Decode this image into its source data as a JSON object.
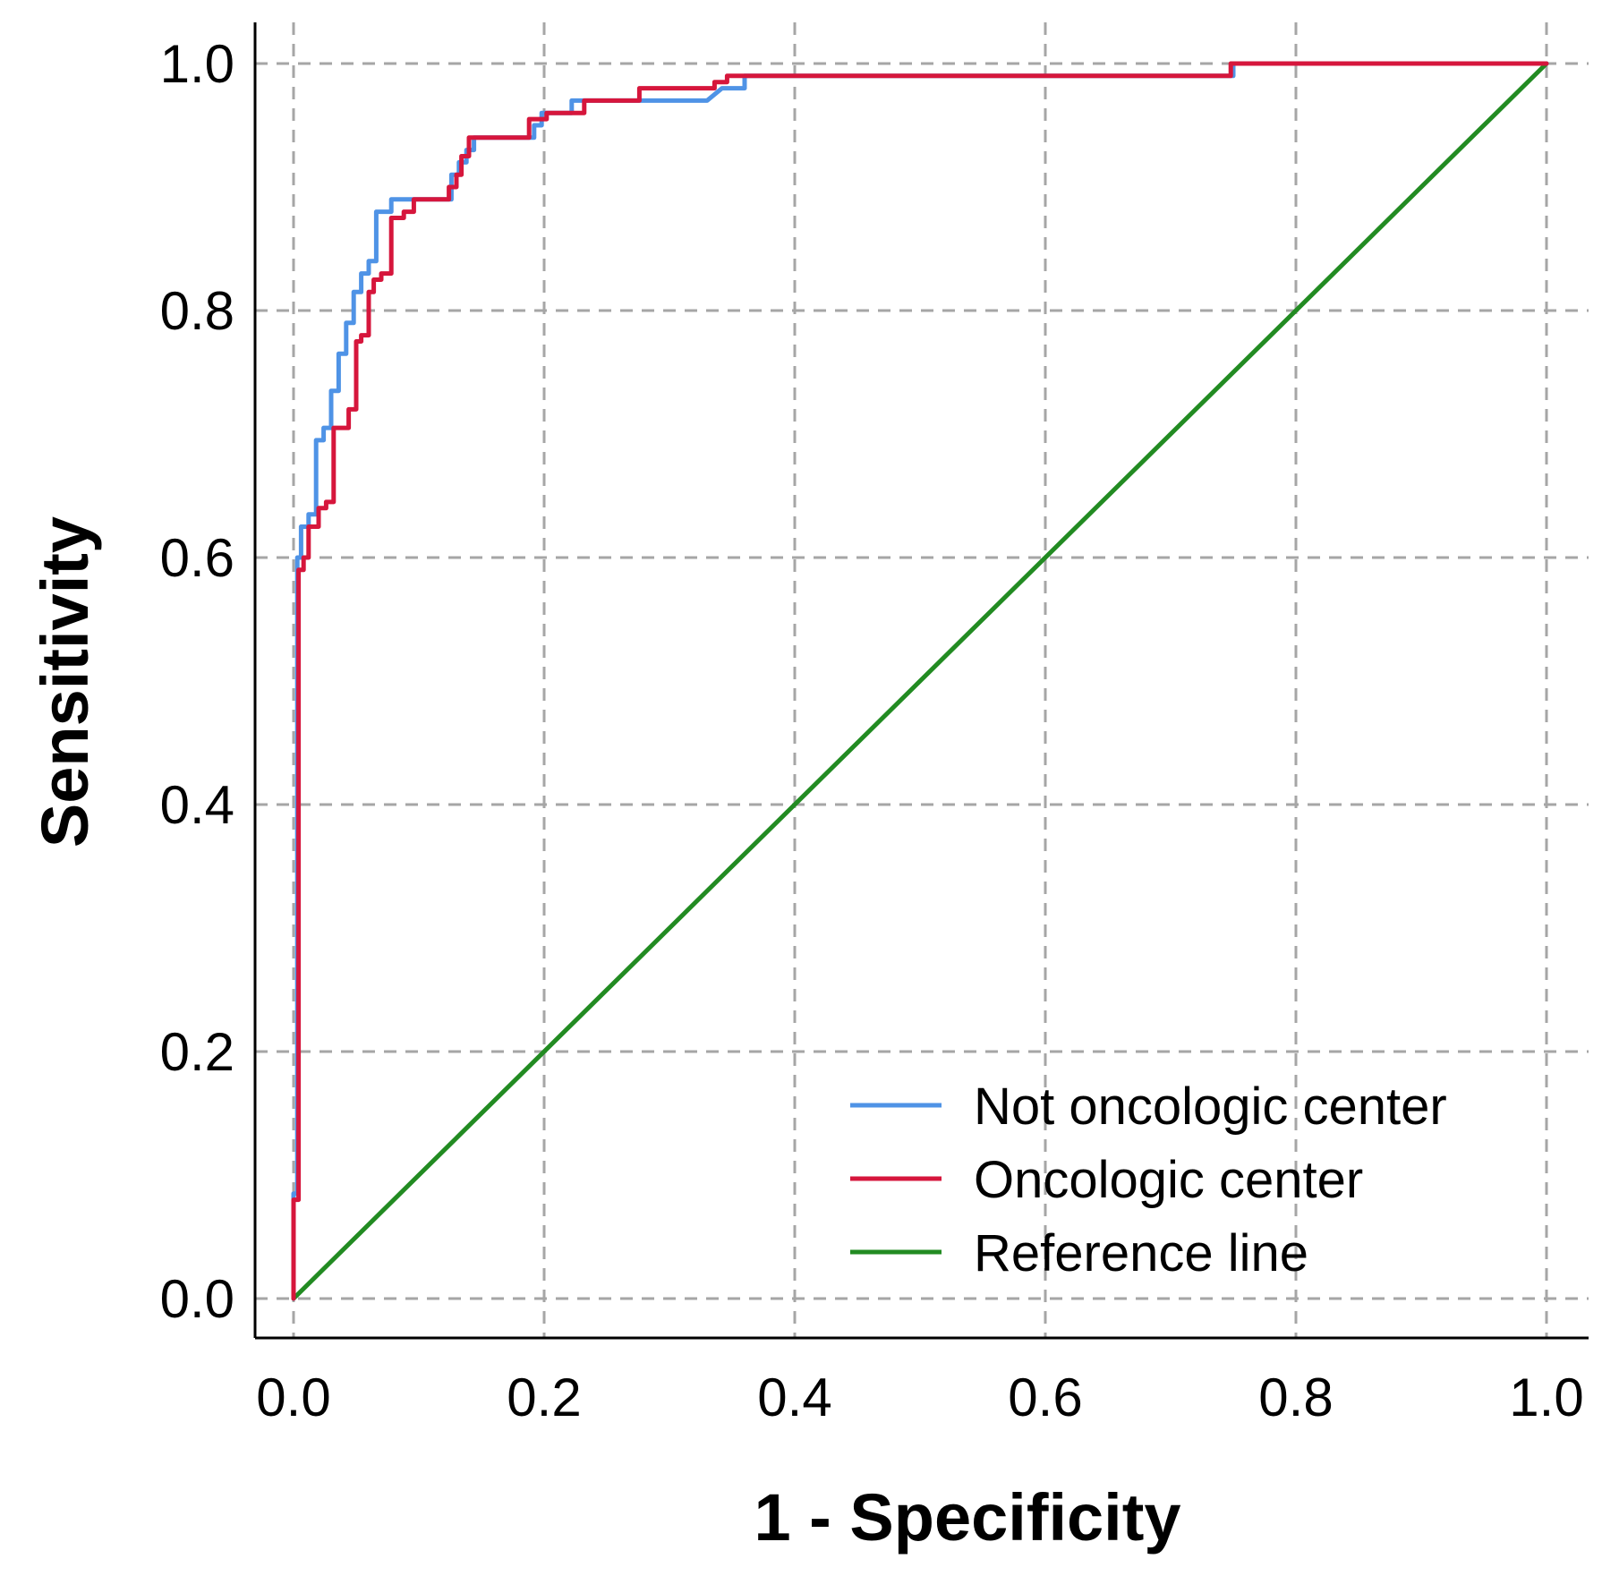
{
  "chart_data": {
    "type": "line",
    "title": "",
    "xlabel": "1 - Specificity",
    "ylabel": "Sensitivity",
    "xlim": [
      0,
      1
    ],
    "ylim": [
      0,
      1
    ],
    "xticks": [
      "0.0",
      "0.2",
      "0.4",
      "0.6",
      "0.8",
      "1.0"
    ],
    "yticks": [
      "0.0",
      "0.2",
      "0.4",
      "0.6",
      "0.8",
      "1.0"
    ],
    "grid": true,
    "legend_position": "bottom-right",
    "series": [
      {
        "name": "Not oncologic center",
        "color": "#4f93e6",
        "x": [
          0,
          0,
          0.003,
          0.003,
          0.006,
          0.006,
          0.012,
          0.012,
          0.018,
          0.018,
          0.024,
          0.024,
          0.03,
          0.03,
          0.036,
          0.036,
          0.042,
          0.042,
          0.048,
          0.048,
          0.054,
          0.054,
          0.06,
          0.06,
          0.066,
          0.066,
          0.072,
          0.072,
          0.078,
          0.078,
          0.096,
          0.096,
          0.126,
          0.126,
          0.132,
          0.132,
          0.138,
          0.138,
          0.144,
          0.144,
          0.192,
          0.192,
          0.198,
          0.198,
          0.204,
          0.204,
          0.222,
          0.222,
          0.228,
          0.228,
          0.33,
          0.342,
          0.36,
          0.36,
          0.75,
          0.75,
          1.0
        ],
        "y": [
          0,
          0.085,
          0.085,
          0.6,
          0.6,
          0.625,
          0.625,
          0.635,
          0.635,
          0.695,
          0.695,
          0.705,
          0.705,
          0.735,
          0.735,
          0.765,
          0.765,
          0.79,
          0.79,
          0.815,
          0.815,
          0.83,
          0.83,
          0.84,
          0.84,
          0.88,
          0.88,
          0.88,
          0.88,
          0.89,
          0.89,
          0.89,
          0.89,
          0.91,
          0.91,
          0.92,
          0.92,
          0.93,
          0.93,
          0.94,
          0.94,
          0.95,
          0.95,
          0.96,
          0.96,
          0.96,
          0.96,
          0.97,
          0.97,
          0.97,
          0.97,
          0.98,
          0.98,
          0.99,
          0.99,
          1.0,
          1.0
        ]
      },
      {
        "name": "Oncologic center",
        "color": "#d6163c",
        "x": [
          0,
          0,
          0.004,
          0.004,
          0.008,
          0.008,
          0.012,
          0.012,
          0.02,
          0.02,
          0.026,
          0.026,
          0.032,
          0.032,
          0.044,
          0.044,
          0.05,
          0.05,
          0.054,
          0.054,
          0.06,
          0.06,
          0.064,
          0.064,
          0.07,
          0.07,
          0.078,
          0.078,
          0.088,
          0.088,
          0.096,
          0.096,
          0.124,
          0.124,
          0.13,
          0.13,
          0.134,
          0.134,
          0.14,
          0.14,
          0.188,
          0.188,
          0.202,
          0.202,
          0.232,
          0.232,
          0.276,
          0.276,
          0.336,
          0.336,
          0.346,
          0.346,
          0.748,
          0.748,
          1.0
        ],
        "y": [
          0,
          0.08,
          0.08,
          0.59,
          0.59,
          0.6,
          0.6,
          0.625,
          0.625,
          0.64,
          0.64,
          0.645,
          0.645,
          0.705,
          0.705,
          0.72,
          0.72,
          0.775,
          0.775,
          0.78,
          0.78,
          0.815,
          0.815,
          0.825,
          0.825,
          0.83,
          0.83,
          0.875,
          0.875,
          0.88,
          0.88,
          0.89,
          0.89,
          0.9,
          0.9,
          0.91,
          0.91,
          0.925,
          0.925,
          0.94,
          0.94,
          0.955,
          0.955,
          0.96,
          0.96,
          0.97,
          0.97,
          0.98,
          0.98,
          0.985,
          0.985,
          0.99,
          0.99,
          1.0,
          1.0
        ]
      },
      {
        "name": "Reference line",
        "color": "#228b22",
        "x": [
          0,
          1
        ],
        "y": [
          0,
          1
        ]
      }
    ]
  }
}
